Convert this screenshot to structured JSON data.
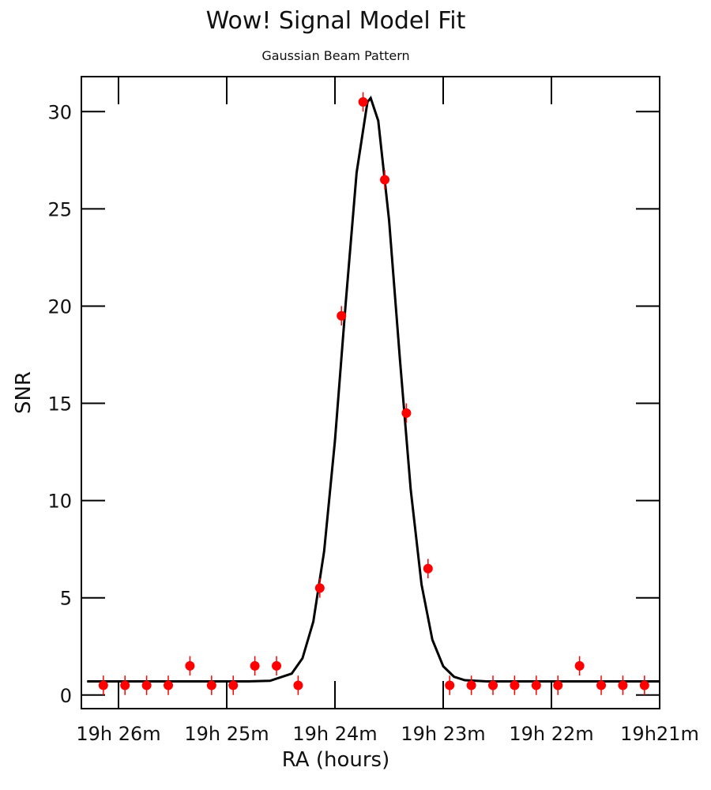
{
  "chart_data": {
    "type": "scatter",
    "title": "Wow! Signal Model Fit",
    "subtitle": "Gaussian Beam Pattern",
    "x_label": "RA (hours)",
    "y_label": "SNR",
    "xlim": [
      26.343,
      21.0
    ],
    "ylim": [
      -0.7,
      31.8
    ],
    "xticks": [
      {
        "value": 26,
        "label": "19h 26m"
      },
      {
        "value": 25,
        "label": "19h 25m"
      },
      {
        "value": 24,
        "label": "19h 24m"
      },
      {
        "value": 23,
        "label": "19h 23m"
      },
      {
        "value": 22,
        "label": "19h 22m"
      },
      {
        "value": 21,
        "label": "19h21m"
      }
    ],
    "yticks": [
      0,
      5,
      10,
      15,
      20,
      25,
      30
    ],
    "points": {
      "color": "#ff0000",
      "x": [
        26.14,
        25.94,
        25.74,
        25.54,
        25.34,
        25.14,
        24.94,
        24.74,
        24.54,
        24.34,
        24.14,
        23.94,
        23.74,
        23.54,
        23.34,
        23.14,
        22.94,
        22.74,
        22.54,
        22.34,
        22.14,
        21.94,
        21.74,
        21.54,
        21.34,
        21.14
      ],
      "values": [
        0.5,
        0.5,
        0.5,
        0.5,
        1.5,
        0.5,
        0.5,
        1.5,
        1.5,
        0.5,
        5.5,
        19.5,
        30.5,
        26.5,
        14.5,
        6.5,
        0.5,
        0.5,
        0.5,
        0.5,
        0.5,
        0.5,
        1.5,
        0.5,
        0.5,
        0.5
      ],
      "errors": [
        0.5,
        0.5,
        0.5,
        0.5,
        0.5,
        0.5,
        0.5,
        0.5,
        0.5,
        0.5,
        0.5,
        0.5,
        0.5,
        0.5,
        0.5,
        0.5,
        0.5,
        0.5,
        0.5,
        0.5,
        0.5,
        0.5,
        0.5,
        0.5,
        0.5,
        0.5
      ]
    },
    "model": {
      "color": "#000000",
      "x": [
        26.29,
        24.8,
        24.6,
        24.4,
        24.3,
        24.2,
        24.1,
        24.0,
        23.9,
        23.8,
        23.7,
        23.67,
        23.6,
        23.5,
        23.4,
        23.3,
        23.2,
        23.1,
        23.0,
        22.9,
        22.8,
        22.6,
        21.0
      ],
      "values": [
        0.7,
        0.7,
        0.73,
        1.1,
        1.89,
        3.77,
        7.39,
        13.08,
        20.2,
        26.86,
        30.49,
        30.7,
        29.53,
        24.42,
        17.28,
        10.56,
        5.68,
        2.84,
        1.48,
        0.94,
        0.76,
        0.7,
        0.7
      ]
    }
  }
}
